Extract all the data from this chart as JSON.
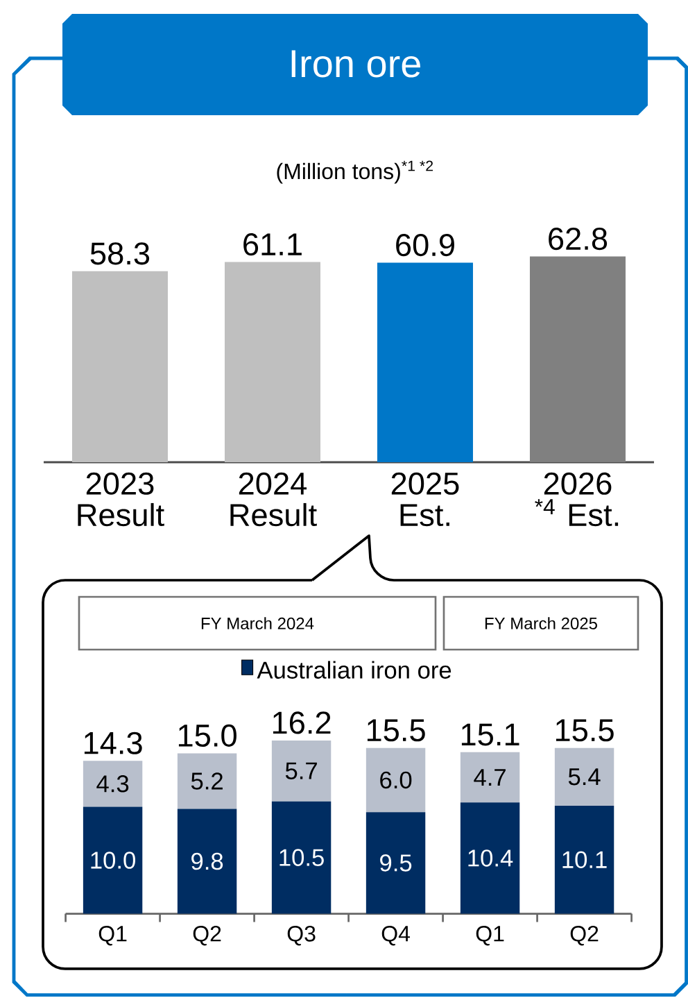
{
  "chart_data": [
    {
      "type": "bar",
      "title": "Iron ore",
      "subtitle": "(Million tons)$^{*1 *2}$",
      "categories": [
        "2023 Result",
        "2024 Result",
        "2025 Est.",
        "2026 $^{*4}$ Est."
      ],
      "values": [
        58.3,
        61.1,
        60.9,
        62.8
      ],
      "colors": [
        "#bfbfbf",
        "#bfbfbf",
        "#0077c8",
        "#808080"
      ],
      "data_labels": true
    },
    {
      "type": "bar",
      "stacked": true,
      "legend": "top",
      "categories": [
        "Q1",
        "Q2",
        "Q3",
        "Q4",
        "Q1",
        "Q2"
      ],
      "series": [
        {
          "name": "Australian iron ore",
          "color": "#002d62",
          "values": [
            10.0,
            9.8,
            10.5,
            9.5,
            10.4,
            10.1
          ],
          "value_labels": [
            "10.0",
            "9.8",
            "10.5",
            "9.5",
            "10.4",
            "10.1"
          ]
        },
        {
          "color": "#b8bfcc",
          "values": [
            4.3,
            5.2,
            5.7,
            6.0,
            4.7,
            5.4
          ],
          "value_labels": [
            "4.3",
            "5.2",
            "5.7",
            "6.0",
            "4.7",
            "5.4"
          ]
        }
      ],
      "totals": [
        "14.3",
        "15.0",
        "16.2",
        "15.5",
        "15.1",
        "15.5"
      ],
      "annotations": [
        "FY March 2024",
        "FY March 2025"
      ]
    }
  ]
}
